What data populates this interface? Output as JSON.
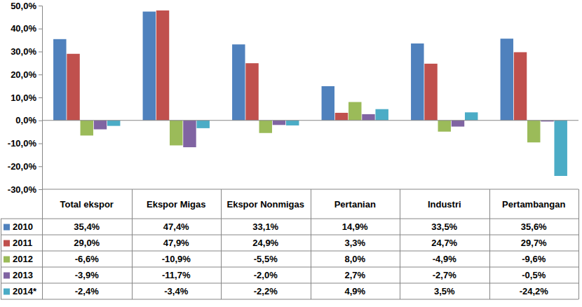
{
  "chart_data": {
    "type": "bar",
    "categories": [
      "Total ekspor",
      "Ekspor Migas",
      "Ekspor Nonmigas",
      "Pertanian",
      "Industri",
      "Pertambangan"
    ],
    "series": [
      {
        "name": "2010",
        "color": "#4f81bd",
        "values": [
          35.4,
          47.4,
          33.1,
          14.9,
          33.5,
          35.6
        ],
        "value_labels": [
          "35,4%",
          "47,4%",
          "33,1%",
          "14,9%",
          "33,5%",
          "35,6%"
        ]
      },
      {
        "name": "2011",
        "color": "#c0504d",
        "values": [
          29.0,
          47.9,
          24.9,
          3.3,
          24.7,
          29.7
        ],
        "value_labels": [
          "29,0%",
          "47,9%",
          "24,9%",
          "3,3%",
          "24,7%",
          "29,7%"
        ]
      },
      {
        "name": "2012",
        "color": "#9bbb59",
        "values": [
          -6.6,
          -10.9,
          -5.5,
          8.0,
          -4.9,
          -9.6
        ],
        "value_labels": [
          "-6,6%",
          "-10,9%",
          "-5,5%",
          "8,0%",
          "-4,9%",
          "-9,6%"
        ]
      },
      {
        "name": "2013",
        "color": "#8064a2",
        "values": [
          -3.9,
          -11.7,
          -2.0,
          2.7,
          -2.7,
          -0.5
        ],
        "value_labels": [
          "-3,9%",
          "-11,7%",
          "-2,0%",
          "2,7%",
          "-2,7%",
          "-0,5%"
        ]
      },
      {
        "name": "2014*",
        "color": "#4bacc6",
        "values": [
          -2.4,
          -3.4,
          -2.2,
          4.9,
          3.5,
          -24.2
        ],
        "value_labels": [
          "-2,4%",
          "-3,4%",
          "-2,2%",
          "4,9%",
          "3,5%",
          "-24,2%"
        ]
      }
    ],
    "ylim": [
      -30,
      50
    ],
    "yticks": [
      {
        "value": -30,
        "label": "-30,0%"
      },
      {
        "value": -20,
        "label": "-20,0%"
      },
      {
        "value": -10,
        "label": "-10,0%"
      },
      {
        "value": 0,
        "label": "0,0%"
      },
      {
        "value": 10,
        "label": "10,0%"
      },
      {
        "value": 20,
        "label": "20,0%"
      },
      {
        "value": 30,
        "label": "30,0%"
      },
      {
        "value": 40,
        "label": "40,0%"
      },
      {
        "value": 50,
        "label": "50,0%"
      }
    ],
    "grid": false
  }
}
